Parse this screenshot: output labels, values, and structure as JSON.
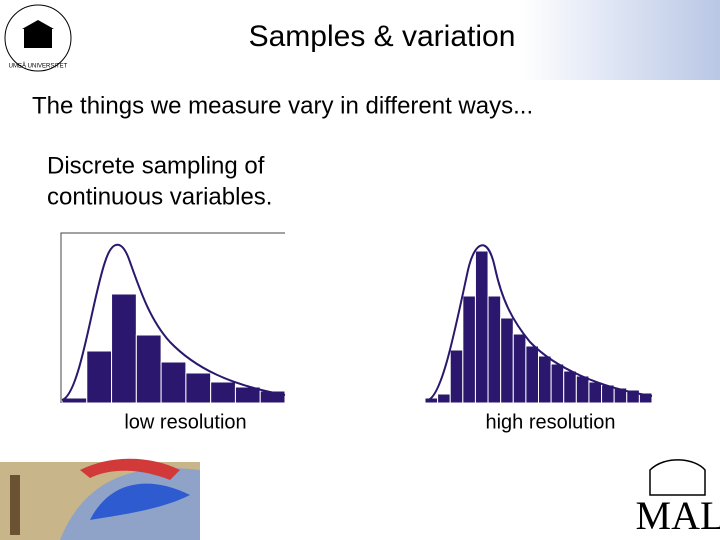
{
  "slide": {
    "title": "Samples & variation",
    "bullet": "The things we measure vary in different ways...",
    "sub_bullet": [
      "Discrete sampling of",
      "continuous variables."
    ],
    "logo_text": "UMEÅ UNIVERSITET",
    "corner_logo": "MAL"
  },
  "chart_data": [
    {
      "type": "histogram",
      "xlabel": "low resolution",
      "bins": [
        0,
        1,
        2,
        3,
        4,
        5,
        6,
        7,
        8,
        9
      ],
      "values": [
        5,
        52,
        109,
        68,
        41,
        30,
        21,
        16,
        12
      ],
      "xlim": [
        0,
        9
      ],
      "ylim": [
        0,
        170
      ],
      "color": "#2b186e",
      "frame": true
    },
    {
      "type": "histogram",
      "xlabel": "high resolution",
      "bins": [
        0,
        1,
        2,
        3,
        4,
        5,
        6,
        7,
        8,
        9,
        10,
        11,
        12,
        13,
        14,
        15,
        16,
        17,
        18
      ],
      "values": [
        5,
        9,
        53,
        107,
        152,
        107,
        85,
        69,
        57,
        47,
        39,
        32,
        27,
        21,
        18,
        15,
        13,
        10
      ],
      "xlim": [
        0,
        18
      ],
      "ylim": [
        0,
        170
      ],
      "color": "#2b186e",
      "frame": false
    }
  ]
}
